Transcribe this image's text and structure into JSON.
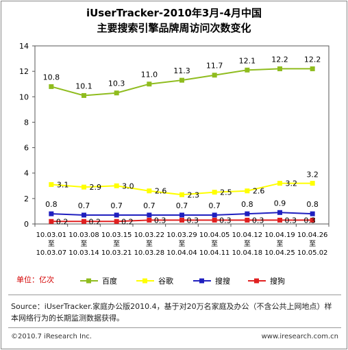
{
  "title_line1": "iUserTracker-2010年3月-4月中国",
  "title_line2": "主要搜索引擎品牌周访问次数变化",
  "unit_label": "单位：亿次",
  "source_text": "Source：iUserTracker.家庭办公版2010.4，基于对20万名家庭及办公（不含公共上网地点）样本网络行为的长期监测数据获得。",
  "copyright": "©2010.7 iResearch Inc.",
  "website": "www.iresearch.com.cn",
  "chart_data": {
    "type": "line",
    "title": "iUserTracker-2010年3月-4月中国 主要搜索引擎品牌周访问次数变化",
    "ylim": [
      0,
      14
    ],
    "yticks": [
      0,
      2,
      4,
      6,
      8,
      10,
      12,
      14
    ],
    "grid": false,
    "legend_position": "bottom",
    "categories": [
      [
        "10.03.01",
        "至",
        "10.03.07"
      ],
      [
        "10.03.08",
        "至",
        "10.03.14"
      ],
      [
        "10.03.15",
        "至",
        "10.03.21"
      ],
      [
        "10.03.22",
        "至",
        "10.03.28"
      ],
      [
        "10.03.29",
        "至",
        "10.04.04"
      ],
      [
        "10.04.05",
        "至",
        "10.04.11"
      ],
      [
        "10.04.12",
        "至",
        "10.04.18"
      ],
      [
        "10.04.19",
        "至",
        "10.04.25"
      ],
      [
        "10.04.26",
        "至",
        "10.05.02"
      ]
    ],
    "series": [
      {
        "name": "百度",
        "color": "#8fbc1e",
        "values": [
          10.8,
          10.1,
          10.3,
          11.0,
          11.3,
          11.7,
          12.1,
          12.2,
          12.2
        ],
        "labels": [
          "10.8",
          "10.1",
          "10.3",
          "11.0",
          "11.3",
          "11.7",
          "12.1",
          "12.2",
          "12.2"
        ]
      },
      {
        "name": "谷歌",
        "color": "#ffff00",
        "values": [
          3.1,
          2.9,
          3.0,
          2.6,
          2.3,
          2.5,
          2.6,
          3.2,
          3.2
        ],
        "labels": [
          "3.1",
          "2.9",
          "3.0",
          "2.6",
          "2.3",
          "2.5",
          "2.6",
          "3.2",
          "3.2"
        ]
      },
      {
        "name": "搜搜",
        "color": "#1f1fbf",
        "values": [
          0.8,
          0.7,
          0.7,
          0.7,
          0.7,
          0.7,
          0.8,
          0.9,
          0.8
        ],
        "labels": [
          "0.8",
          "0.7",
          "0.7",
          "0.7",
          "0.7",
          "0.7",
          "0.8",
          "0.9",
          "0.8"
        ]
      },
      {
        "name": "搜狗",
        "color": "#e02020",
        "values": [
          0.2,
          0.2,
          0.2,
          0.3,
          0.3,
          0.3,
          0.3,
          0.3,
          0.3
        ],
        "labels": [
          "0.2",
          "0.2",
          "0.2",
          "0.3",
          "0.3",
          "0.3",
          "0.3",
          "0.3",
          "0.3"
        ]
      }
    ]
  }
}
